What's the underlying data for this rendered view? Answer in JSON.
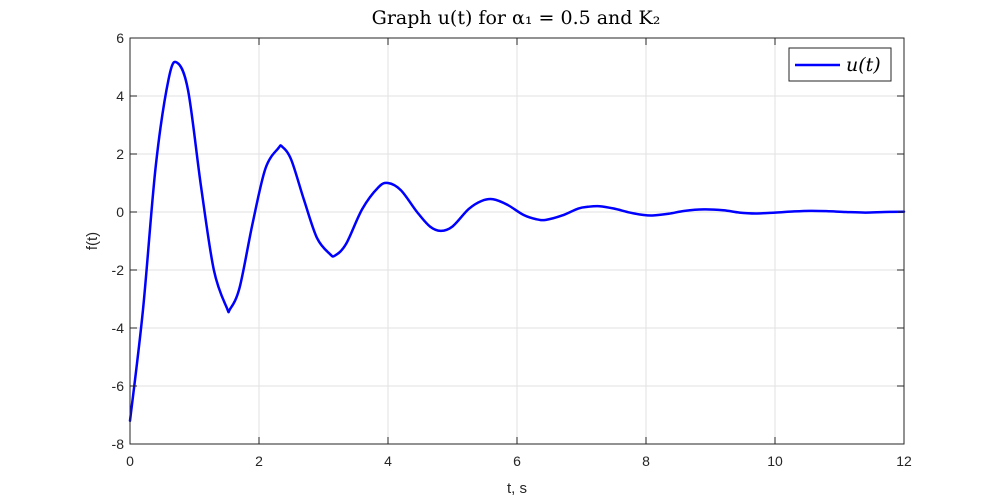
{
  "chart_data": {
    "type": "line",
    "title": "Graph u(t) for α₁ = 0.5 and K₂",
    "xlabel": "t, s",
    "ylabel": "f(t)",
    "xlim": [
      0,
      12
    ],
    "ylim": [
      -8,
      6
    ],
    "xticks": [
      0,
      2,
      4,
      6,
      8,
      10,
      12
    ],
    "yticks": [
      -8,
      -6,
      -4,
      -2,
      0,
      2,
      4,
      6
    ],
    "grid": true,
    "legend": {
      "position": "top-right",
      "entries": [
        "u(t)"
      ]
    },
    "series": [
      {
        "name": "u(t)",
        "color": "#0000ff",
        "x": [
          0,
          0.2,
          0.4,
          0.6,
          0.73,
          0.9,
          1.1,
          1.3,
          1.5,
          1.55,
          1.7,
          1.9,
          2.1,
          2.3,
          2.36,
          2.5,
          2.7,
          2.9,
          3.1,
          3.18,
          3.35,
          3.6,
          3.85,
          4.0,
          4.2,
          4.45,
          4.65,
          4.82,
          5.0,
          5.25,
          5.45,
          5.63,
          5.85,
          6.1,
          6.3,
          6.45,
          6.7,
          6.95,
          7.1,
          7.28,
          7.5,
          7.75,
          7.95,
          8.1,
          8.35,
          8.6,
          8.9,
          9.2,
          9.45,
          9.7,
          10.0,
          10.3,
          10.55,
          10.8,
          11.1,
          11.4,
          11.7,
          12.0
        ],
        "y": [
          -7.2,
          -3.4,
          1.6,
          4.6,
          5.15,
          4.2,
          0.9,
          -2.0,
          -3.3,
          -3.35,
          -2.6,
          -0.4,
          1.5,
          2.2,
          2.25,
          1.8,
          0.4,
          -0.9,
          -1.45,
          -1.5,
          -1.1,
          0.1,
          0.85,
          1.0,
          0.75,
          0.0,
          -0.5,
          -0.65,
          -0.5,
          0.1,
          0.38,
          0.44,
          0.25,
          -0.1,
          -0.25,
          -0.27,
          -0.12,
          0.12,
          0.18,
          0.2,
          0.12,
          -0.02,
          -0.1,
          -0.12,
          -0.06,
          0.04,
          0.09,
          0.06,
          -0.02,
          -0.05,
          -0.02,
          0.02,
          0.04,
          0.03,
          0.0,
          -0.02,
          0.0,
          0.01
        ]
      }
    ]
  }
}
